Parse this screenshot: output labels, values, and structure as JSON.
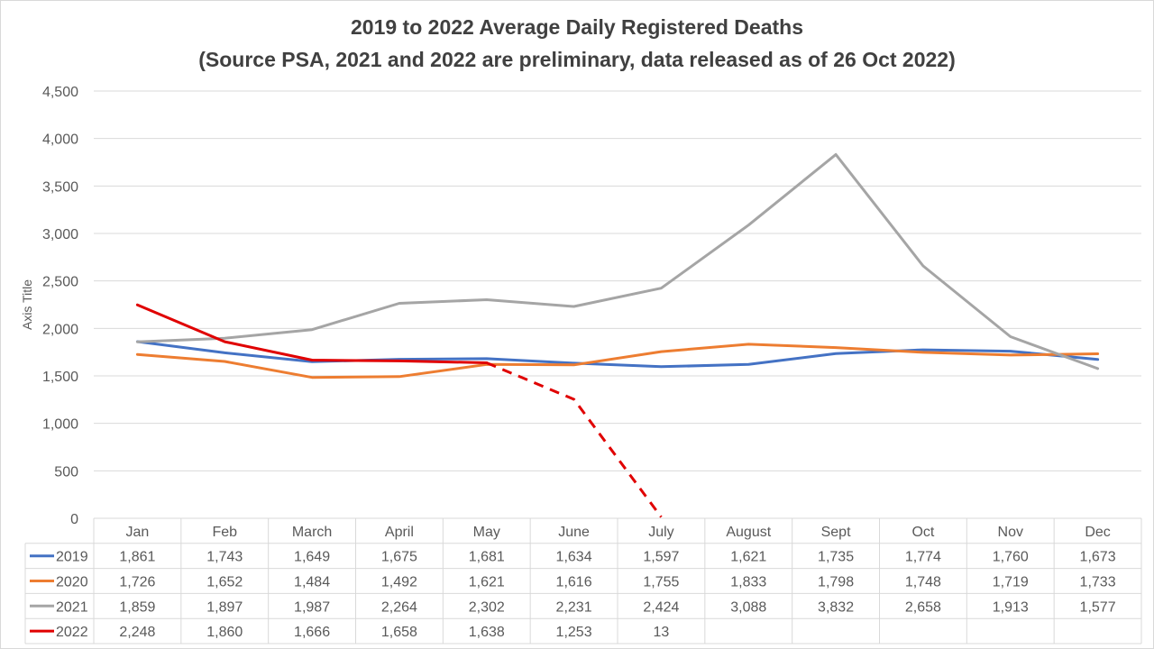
{
  "chart_data": {
    "type": "line",
    "title": "2019 to 2022 Average Daily Registered Deaths",
    "subtitle": "(Source PSA, 2021 and 2022 are preliminary, data released as of 26 Oct 2022)",
    "ylabel": "Axis Title",
    "ylim": [
      0,
      4500
    ],
    "yticks": [
      "0",
      "500",
      "1,000",
      "1,500",
      "2,000",
      "2,500",
      "3,000",
      "3,500",
      "4,000",
      "4,500"
    ],
    "grid": true,
    "categories": [
      "Jan",
      "Feb",
      "March",
      "April",
      "May",
      "June",
      "July",
      "August",
      "Sept",
      "Oct",
      "Nov",
      "Dec"
    ],
    "series": [
      {
        "name": "2019",
        "color": "#4472c4",
        "values": [
          1861,
          1743,
          1649,
          1675,
          1681,
          1634,
          1597,
          1621,
          1735,
          1774,
          1760,
          1673
        ],
        "labels": [
          "1,861",
          "1,743",
          "1,649",
          "1,675",
          "1,681",
          "1,634",
          "1,597",
          "1,621",
          "1,735",
          "1,774",
          "1,760",
          "1,673"
        ]
      },
      {
        "name": "2020",
        "color": "#ed7d31",
        "values": [
          1726,
          1652,
          1484,
          1492,
          1621,
          1616,
          1755,
          1833,
          1798,
          1748,
          1719,
          1733
        ],
        "labels": [
          "1,726",
          "1,652",
          "1,484",
          "1,492",
          "1,621",
          "1,616",
          "1,755",
          "1,833",
          "1,798",
          "1,748",
          "1,719",
          "1,733"
        ]
      },
      {
        "name": "2021",
        "color": "#a5a5a5",
        "values": [
          1859,
          1897,
          1987,
          2264,
          2302,
          2231,
          2424,
          3088,
          3832,
          2658,
          1913,
          1577
        ],
        "labels": [
          "1,859",
          "1,897",
          "1,987",
          "2,264",
          "2,302",
          "2,231",
          "2,424",
          "3,088",
          "3,832",
          "2,658",
          "1,913",
          "1,577"
        ]
      },
      {
        "name": "2022",
        "color": "#e00000",
        "values": [
          2248,
          1860,
          1666,
          1658,
          1638,
          1253,
          13,
          null,
          null,
          null,
          null,
          null
        ],
        "labels": [
          "2,248",
          "1,860",
          "1,666",
          "1,658",
          "1,638",
          "1,253",
          "13",
          "",
          "",
          "",
          "",
          ""
        ],
        "dashed_from_index": 4
      }
    ]
  }
}
